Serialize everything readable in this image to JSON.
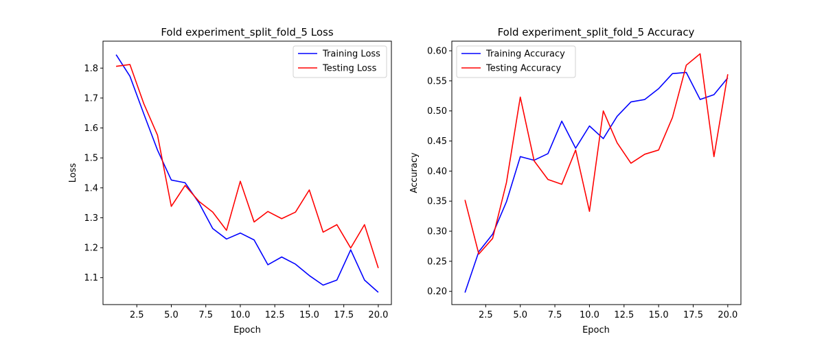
{
  "chart_data": [
    {
      "type": "line",
      "title": "Fold experiment_split_fold_5 Loss",
      "xlabel": "Epoch",
      "ylabel": "Loss",
      "xlim": [
        0.05,
        20.95
      ],
      "ylim": [
        1.01,
        1.89
      ],
      "xticks": [
        2.5,
        5.0,
        7.5,
        10.0,
        12.5,
        15.0,
        17.5,
        20.0
      ],
      "xtick_labels": [
        "2.5",
        "5.0",
        "7.5",
        "10.0",
        "12.5",
        "15.0",
        "17.5",
        "20.0"
      ],
      "yticks": [
        1.1,
        1.2,
        1.3,
        1.4,
        1.5,
        1.6,
        1.7,
        1.8
      ],
      "ytick_labels": [
        "1.1",
        "1.2",
        "1.3",
        "1.4",
        "1.5",
        "1.6",
        "1.7",
        "1.8"
      ],
      "grid": false,
      "legend": "top-right",
      "x": [
        1,
        2,
        3,
        4,
        5,
        6,
        7,
        8,
        9,
        10,
        11,
        12,
        13,
        14,
        15,
        16,
        17,
        18,
        19,
        20
      ],
      "series": [
        {
          "name": "Training Loss",
          "color": "#0000ff",
          "values": [
            1.845,
            1.773,
            1.648,
            1.526,
            1.426,
            1.417,
            1.35,
            1.264,
            1.229,
            1.249,
            1.226,
            1.143,
            1.169,
            1.145,
            1.107,
            1.075,
            1.092,
            1.193,
            1.092,
            1.051
          ]
        },
        {
          "name": "Testing Loss",
          "color": "#ff0000",
          "values": [
            1.806,
            1.812,
            1.682,
            1.576,
            1.338,
            1.408,
            1.355,
            1.319,
            1.258,
            1.422,
            1.286,
            1.321,
            1.297,
            1.319,
            1.393,
            1.252,
            1.277,
            1.199,
            1.277,
            1.132
          ]
        }
      ]
    },
    {
      "type": "line",
      "title": "Fold experiment_split_fold_5 Accuracy",
      "xlabel": "Epoch",
      "ylabel": "Accuracy",
      "xlim": [
        0.05,
        20.95
      ],
      "ylim": [
        0.178,
        0.616
      ],
      "xticks": [
        2.5,
        5.0,
        7.5,
        10.0,
        12.5,
        15.0,
        17.5,
        20.0
      ],
      "xtick_labels": [
        "2.5",
        "5.0",
        "7.5",
        "10.0",
        "12.5",
        "15.0",
        "17.5",
        "20.0"
      ],
      "yticks": [
        0.2,
        0.25,
        0.3,
        0.35,
        0.4,
        0.45,
        0.5,
        0.55,
        0.6
      ],
      "ytick_labels": [
        "0.20",
        "0.25",
        "0.30",
        "0.35",
        "0.40",
        "0.45",
        "0.50",
        "0.55",
        "0.60"
      ],
      "grid": false,
      "legend": "top-left",
      "x": [
        1,
        2,
        3,
        4,
        5,
        6,
        7,
        8,
        9,
        10,
        11,
        12,
        13,
        14,
        15,
        16,
        17,
        18,
        19,
        20
      ],
      "series": [
        {
          "name": "Training Accuracy",
          "color": "#0000ff",
          "values": [
            0.198,
            0.266,
            0.295,
            0.349,
            0.424,
            0.418,
            0.429,
            0.483,
            0.438,
            0.475,
            0.454,
            0.491,
            0.515,
            0.519,
            0.537,
            0.562,
            0.564,
            0.519,
            0.527,
            0.555
          ]
        },
        {
          "name": "Testing Accuracy",
          "color": "#ff0000",
          "values": [
            0.352,
            0.262,
            0.288,
            0.381,
            0.523,
            0.417,
            0.386,
            0.378,
            0.435,
            0.333,
            0.5,
            0.447,
            0.413,
            0.428,
            0.435,
            0.489,
            0.576,
            0.595,
            0.424,
            0.561
          ]
        }
      ]
    }
  ]
}
